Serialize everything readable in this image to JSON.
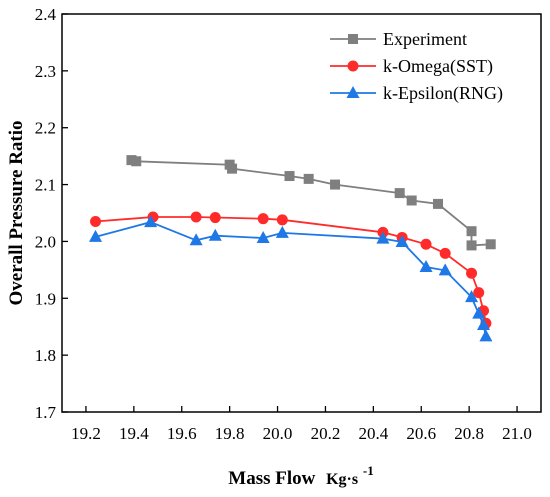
{
  "chart_data": {
    "type": "line",
    "xlabel": "Mass Flow",
    "xlabel_unit": "Kg·s",
    "xlabel_unit_sup": "-1",
    "ylabel": "Overall Pressure Ratio",
    "xlim": [
      19.1,
      21.1
    ],
    "ylim": [
      1.7,
      2.4
    ],
    "x_ticks": [
      "19.2",
      "19.4",
      "19.6",
      "19.8",
      "20.0",
      "20.2",
      "20.4",
      "20.6",
      "20.8",
      "21.0"
    ],
    "y_ticks": [
      "1.7",
      "1.8",
      "1.9",
      "2.0",
      "2.1",
      "2.2",
      "2.3",
      "2.4"
    ],
    "grid": false,
    "legend_position": "top-right",
    "series": [
      {
        "name": "Experiment",
        "color": "#7f7f7f",
        "marker": "square",
        "x": [
          19.39,
          19.41,
          19.8,
          19.81,
          20.05,
          20.13,
          20.24,
          20.51,
          20.56,
          20.67,
          20.81,
          20.81,
          20.89
        ],
        "y": [
          2.143,
          2.141,
          2.135,
          2.128,
          2.115,
          2.11,
          2.1,
          2.085,
          2.072,
          2.066,
          2.018,
          1.993,
          1.995
        ]
      },
      {
        "name": "k-Omega(SST)",
        "color": "#ff2b2b",
        "marker": "circle",
        "x": [
          19.24,
          19.48,
          19.66,
          19.74,
          19.94,
          20.02,
          20.44,
          20.52,
          20.62,
          20.7,
          20.81,
          20.84,
          20.86,
          20.87
        ],
        "y": [
          2.035,
          2.043,
          2.043,
          2.042,
          2.04,
          2.038,
          2.016,
          2.007,
          1.995,
          1.979,
          1.944,
          1.91,
          1.878,
          1.856
        ]
      },
      {
        "name": "k-Epsilon(RNG)",
        "color": "#1e78e6",
        "marker": "triangle",
        "x": [
          19.24,
          19.47,
          19.66,
          19.74,
          19.94,
          20.02,
          20.44,
          20.52,
          20.62,
          20.7,
          20.81,
          20.84,
          20.86,
          20.87
        ],
        "y": [
          2.008,
          2.034,
          2.002,
          2.01,
          2.006,
          2.015,
          2.005,
          1.999,
          1.955,
          1.949,
          1.902,
          1.873,
          1.853,
          1.833
        ]
      }
    ]
  }
}
